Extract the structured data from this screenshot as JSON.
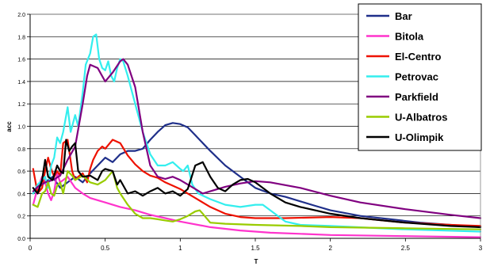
{
  "chart_data": {
    "type": "line",
    "title": "",
    "xlabel": "T",
    "ylabel": "acc",
    "xlim": [
      0,
      3
    ],
    "ylim": [
      0,
      2.0
    ],
    "x_ticks": [
      0,
      0.5,
      1,
      1.5,
      2,
      2.5,
      3
    ],
    "x_tick_labels": [
      "0",
      "0.5",
      "1",
      "1.5",
      "2",
      "2.5",
      "3"
    ],
    "y_ticks": [
      0,
      0.2,
      0.4,
      0.6,
      0.8,
      1.0,
      1.2,
      1.4,
      1.6,
      1.8,
      2.0
    ],
    "y_tick_labels": [
      "0.0",
      "0.2",
      "0.4",
      "0.6",
      "0.8",
      "1.0",
      "1.2",
      "1.4",
      "1.6",
      "1.8",
      "2.0"
    ],
    "grid": "horizontal",
    "legend_position": "top-right",
    "series": [
      {
        "name": "Bar",
        "color": "#1f2f8a",
        "points": [
          [
            0.02,
            0.4
          ],
          [
            0.05,
            0.45
          ],
          [
            0.1,
            0.5
          ],
          [
            0.15,
            0.55
          ],
          [
            0.2,
            0.45
          ],
          [
            0.25,
            0.5
          ],
          [
            0.3,
            0.55
          ],
          [
            0.35,
            0.5
          ],
          [
            0.4,
            0.58
          ],
          [
            0.45,
            0.65
          ],
          [
            0.5,
            0.72
          ],
          [
            0.55,
            0.68
          ],
          [
            0.6,
            0.75
          ],
          [
            0.65,
            0.78
          ],
          [
            0.7,
            0.78
          ],
          [
            0.75,
            0.8
          ],
          [
            0.8,
            0.88
          ],
          [
            0.85,
            0.95
          ],
          [
            0.9,
            1.01
          ],
          [
            0.95,
            1.03
          ],
          [
            1.0,
            1.02
          ],
          [
            1.05,
            0.99
          ],
          [
            1.1,
            0.92
          ],
          [
            1.2,
            0.78
          ],
          [
            1.3,
            0.65
          ],
          [
            1.4,
            0.55
          ],
          [
            1.5,
            0.45
          ],
          [
            1.6,
            0.4
          ],
          [
            1.7,
            0.37
          ],
          [
            1.8,
            0.33
          ],
          [
            1.9,
            0.29
          ],
          [
            2.0,
            0.25
          ],
          [
            2.2,
            0.2
          ],
          [
            2.4,
            0.17
          ],
          [
            2.6,
            0.14
          ],
          [
            2.8,
            0.12
          ],
          [
            3.0,
            0.1
          ]
        ]
      },
      {
        "name": "Bitola",
        "color": "#ff33cc",
        "points": [
          [
            0.02,
            0.3
          ],
          [
            0.05,
            0.45
          ],
          [
            0.08,
            0.55
          ],
          [
            0.1,
            0.5
          ],
          [
            0.12,
            0.4
          ],
          [
            0.14,
            0.34
          ],
          [
            0.16,
            0.42
          ],
          [
            0.18,
            0.58
          ],
          [
            0.2,
            0.5
          ],
          [
            0.25,
            0.55
          ],
          [
            0.3,
            0.45
          ],
          [
            0.35,
            0.4
          ],
          [
            0.4,
            0.36
          ],
          [
            0.5,
            0.32
          ],
          [
            0.6,
            0.28
          ],
          [
            0.7,
            0.25
          ],
          [
            0.8,
            0.21
          ],
          [
            0.9,
            0.18
          ],
          [
            1.0,
            0.15
          ],
          [
            1.2,
            0.1
          ],
          [
            1.4,
            0.07
          ],
          [
            1.6,
            0.05
          ],
          [
            1.8,
            0.04
          ],
          [
            2.0,
            0.03
          ],
          [
            2.5,
            0.02
          ],
          [
            3.0,
            0.01
          ]
        ]
      },
      {
        "name": "El-Centro",
        "color": "#ee1100",
        "points": [
          [
            0.02,
            0.62
          ],
          [
            0.05,
            0.4
          ],
          [
            0.08,
            0.45
          ],
          [
            0.1,
            0.6
          ],
          [
            0.12,
            0.72
          ],
          [
            0.14,
            0.62
          ],
          [
            0.16,
            0.55
          ],
          [
            0.18,
            0.6
          ],
          [
            0.2,
            0.56
          ],
          [
            0.22,
            0.85
          ],
          [
            0.25,
            0.88
          ],
          [
            0.28,
            0.6
          ],
          [
            0.3,
            0.52
          ],
          [
            0.32,
            0.55
          ],
          [
            0.35,
            0.58
          ],
          [
            0.38,
            0.5
          ],
          [
            0.4,
            0.62
          ],
          [
            0.42,
            0.7
          ],
          [
            0.45,
            0.78
          ],
          [
            0.48,
            0.82
          ],
          [
            0.5,
            0.8
          ],
          [
            0.55,
            0.88
          ],
          [
            0.6,
            0.85
          ],
          [
            0.65,
            0.74
          ],
          [
            0.7,
            0.66
          ],
          [
            0.75,
            0.6
          ],
          [
            0.8,
            0.56
          ],
          [
            0.85,
            0.54
          ],
          [
            0.9,
            0.5
          ],
          [
            0.95,
            0.47
          ],
          [
            1.0,
            0.44
          ],
          [
            1.05,
            0.4
          ],
          [
            1.1,
            0.36
          ],
          [
            1.2,
            0.28
          ],
          [
            1.3,
            0.22
          ],
          [
            1.4,
            0.19
          ],
          [
            1.5,
            0.18
          ],
          [
            1.7,
            0.18
          ],
          [
            2.0,
            0.19
          ],
          [
            2.2,
            0.18
          ],
          [
            2.5,
            0.14
          ],
          [
            2.8,
            0.12
          ],
          [
            3.0,
            0.11
          ]
        ]
      },
      {
        "name": "Petrovac",
        "color": "#33eeee",
        "points": [
          [
            0.02,
            0.4
          ],
          [
            0.05,
            0.48
          ],
          [
            0.08,
            0.52
          ],
          [
            0.1,
            0.55
          ],
          [
            0.12,
            0.45
          ],
          [
            0.14,
            0.65
          ],
          [
            0.16,
            0.72
          ],
          [
            0.18,
            0.9
          ],
          [
            0.2,
            0.85
          ],
          [
            0.22,
            0.95
          ],
          [
            0.25,
            1.17
          ],
          [
            0.27,
            0.95
          ],
          [
            0.3,
            1.1
          ],
          [
            0.32,
            1.0
          ],
          [
            0.35,
            1.3
          ],
          [
            0.37,
            1.55
          ],
          [
            0.4,
            1.65
          ],
          [
            0.42,
            1.8
          ],
          [
            0.44,
            1.82
          ],
          [
            0.46,
            1.6
          ],
          [
            0.48,
            1.52
          ],
          [
            0.5,
            1.5
          ],
          [
            0.52,
            1.58
          ],
          [
            0.54,
            1.45
          ],
          [
            0.56,
            1.4
          ],
          [
            0.58,
            1.52
          ],
          [
            0.6,
            1.6
          ],
          [
            0.62,
            1.58
          ],
          [
            0.65,
            1.45
          ],
          [
            0.7,
            1.2
          ],
          [
            0.75,
            0.95
          ],
          [
            0.8,
            0.75
          ],
          [
            0.85,
            0.65
          ],
          [
            0.9,
            0.65
          ],
          [
            0.95,
            0.68
          ],
          [
            1.0,
            0.62
          ],
          [
            1.02,
            0.6
          ],
          [
            1.05,
            0.65
          ],
          [
            1.08,
            0.48
          ],
          [
            1.12,
            0.4
          ],
          [
            1.2,
            0.35
          ],
          [
            1.3,
            0.3
          ],
          [
            1.4,
            0.28
          ],
          [
            1.5,
            0.3
          ],
          [
            1.55,
            0.3
          ],
          [
            1.6,
            0.25
          ],
          [
            1.7,
            0.15
          ],
          [
            1.8,
            0.12
          ],
          [
            2.0,
            0.11
          ],
          [
            2.5,
            0.08
          ],
          [
            3.0,
            0.06
          ]
        ]
      },
      {
        "name": "Parkfield",
        "color": "#800080",
        "points": [
          [
            0.02,
            0.42
          ],
          [
            0.05,
            0.46
          ],
          [
            0.1,
            0.5
          ],
          [
            0.15,
            0.52
          ],
          [
            0.2,
            0.56
          ],
          [
            0.25,
            0.7
          ],
          [
            0.3,
            0.82
          ],
          [
            0.35,
            1.2
          ],
          [
            0.38,
            1.45
          ],
          [
            0.4,
            1.55
          ],
          [
            0.45,
            1.52
          ],
          [
            0.5,
            1.4
          ],
          [
            0.55,
            1.48
          ],
          [
            0.6,
            1.58
          ],
          [
            0.62,
            1.6
          ],
          [
            0.65,
            1.55
          ],
          [
            0.7,
            1.35
          ],
          [
            0.75,
            0.95
          ],
          [
            0.8,
            0.65
          ],
          [
            0.85,
            0.55
          ],
          [
            0.9,
            0.53
          ],
          [
            0.95,
            0.55
          ],
          [
            1.0,
            0.52
          ],
          [
            1.05,
            0.48
          ],
          [
            1.1,
            0.44
          ],
          [
            1.15,
            0.4
          ],
          [
            1.2,
            0.42
          ],
          [
            1.3,
            0.46
          ],
          [
            1.4,
            0.49
          ],
          [
            1.5,
            0.51
          ],
          [
            1.6,
            0.5
          ],
          [
            1.8,
            0.45
          ],
          [
            2.0,
            0.38
          ],
          [
            2.2,
            0.32
          ],
          [
            2.5,
            0.26
          ],
          [
            2.8,
            0.21
          ],
          [
            3.0,
            0.18
          ]
        ]
      },
      {
        "name": "U-Albatros",
        "color": "#99cc00",
        "points": [
          [
            0.02,
            0.3
          ],
          [
            0.05,
            0.28
          ],
          [
            0.08,
            0.4
          ],
          [
            0.1,
            0.42
          ],
          [
            0.12,
            0.5
          ],
          [
            0.14,
            0.4
          ],
          [
            0.16,
            0.38
          ],
          [
            0.18,
            0.47
          ],
          [
            0.2,
            0.5
          ],
          [
            0.22,
            0.4
          ],
          [
            0.25,
            0.6
          ],
          [
            0.28,
            0.56
          ],
          [
            0.3,
            0.52
          ],
          [
            0.35,
            0.56
          ],
          [
            0.4,
            0.5
          ],
          [
            0.45,
            0.48
          ],
          [
            0.5,
            0.52
          ],
          [
            0.55,
            0.6
          ],
          [
            0.58,
            0.45
          ],
          [
            0.6,
            0.4
          ],
          [
            0.65,
            0.3
          ],
          [
            0.7,
            0.22
          ],
          [
            0.75,
            0.18
          ],
          [
            0.8,
            0.18
          ],
          [
            0.85,
            0.17
          ],
          [
            0.9,
            0.16
          ],
          [
            0.95,
            0.15
          ],
          [
            1.0,
            0.17
          ],
          [
            1.05,
            0.2
          ],
          [
            1.1,
            0.24
          ],
          [
            1.13,
            0.25
          ],
          [
            1.15,
            0.22
          ],
          [
            1.2,
            0.14
          ],
          [
            1.3,
            0.13
          ],
          [
            1.5,
            0.12
          ],
          [
            1.8,
            0.11
          ],
          [
            2.0,
            0.1
          ],
          [
            2.5,
            0.09
          ],
          [
            3.0,
            0.08
          ]
        ]
      },
      {
        "name": "U-Olimpik",
        "color": "#000000",
        "points": [
          [
            0.02,
            0.45
          ],
          [
            0.05,
            0.4
          ],
          [
            0.08,
            0.52
          ],
          [
            0.1,
            0.7
          ],
          [
            0.12,
            0.55
          ],
          [
            0.15,
            0.52
          ],
          [
            0.18,
            0.65
          ],
          [
            0.2,
            0.6
          ],
          [
            0.22,
            0.58
          ],
          [
            0.24,
            0.88
          ],
          [
            0.26,
            0.78
          ],
          [
            0.28,
            0.82
          ],
          [
            0.3,
            0.85
          ],
          [
            0.32,
            0.6
          ],
          [
            0.35,
            0.55
          ],
          [
            0.4,
            0.56
          ],
          [
            0.45,
            0.52
          ],
          [
            0.48,
            0.6
          ],
          [
            0.5,
            0.62
          ],
          [
            0.55,
            0.6
          ],
          [
            0.58,
            0.48
          ],
          [
            0.6,
            0.52
          ],
          [
            0.65,
            0.4
          ],
          [
            0.7,
            0.42
          ],
          [
            0.75,
            0.38
          ],
          [
            0.8,
            0.42
          ],
          [
            0.85,
            0.45
          ],
          [
            0.9,
            0.4
          ],
          [
            0.95,
            0.42
          ],
          [
            1.0,
            0.38
          ],
          [
            1.05,
            0.44
          ],
          [
            1.1,
            0.65
          ],
          [
            1.15,
            0.68
          ],
          [
            1.2,
            0.55
          ],
          [
            1.25,
            0.45
          ],
          [
            1.3,
            0.42
          ],
          [
            1.35,
            0.48
          ],
          [
            1.4,
            0.52
          ],
          [
            1.45,
            0.53
          ],
          [
            1.5,
            0.5
          ],
          [
            1.6,
            0.4
          ],
          [
            1.7,
            0.32
          ],
          [
            1.8,
            0.28
          ],
          [
            2.0,
            0.22
          ],
          [
            2.2,
            0.18
          ],
          [
            2.5,
            0.14
          ],
          [
            2.8,
            0.11
          ],
          [
            3.0,
            0.1
          ]
        ]
      }
    ]
  }
}
